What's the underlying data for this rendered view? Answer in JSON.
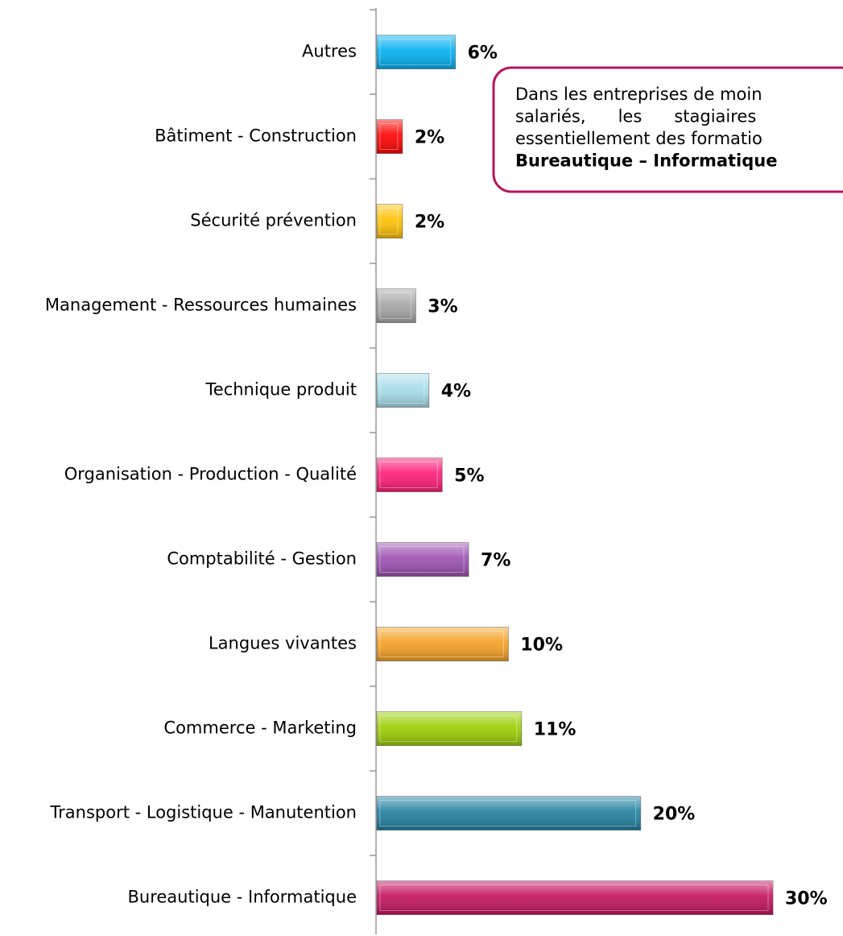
{
  "chart_data": {
    "type": "hbar",
    "categories": [
      "Autres",
      "Bâtiment - Construction",
      "Sécurité prévention",
      "Management - Ressources humaines",
      "Technique produit",
      "Organisation - Production - Qualité",
      "Comptabilité - Gestion",
      "Langues vivantes",
      "Commerce - Marketing",
      "Transport - Logistique - Manutention",
      "Bureautique - Informatique"
    ],
    "values": [
      6,
      2,
      2,
      3,
      4,
      5,
      7,
      10,
      11,
      20,
      30
    ],
    "value_labels": [
      "6%",
      "2%",
      "2%",
      "3%",
      "4%",
      "5%",
      "7%",
      "10%",
      "11%",
      "20%",
      "30%"
    ],
    "colors": [
      "#00b0f0",
      "#ff0000",
      "#ffc000",
      "#a6a6a6",
      "#a5dcea",
      "#ff1a75",
      "#9b4fb0",
      "#f5a020",
      "#9acd00",
      "#1f7f9f",
      "#c2105a"
    ],
    "annotation": {
      "lines": [
        "Dans les entreprises de moin",
        "salariés,      les      stagiaires",
        "essentiellement des formatio",
        "Bureautique – Informatique"
      ]
    }
  }
}
